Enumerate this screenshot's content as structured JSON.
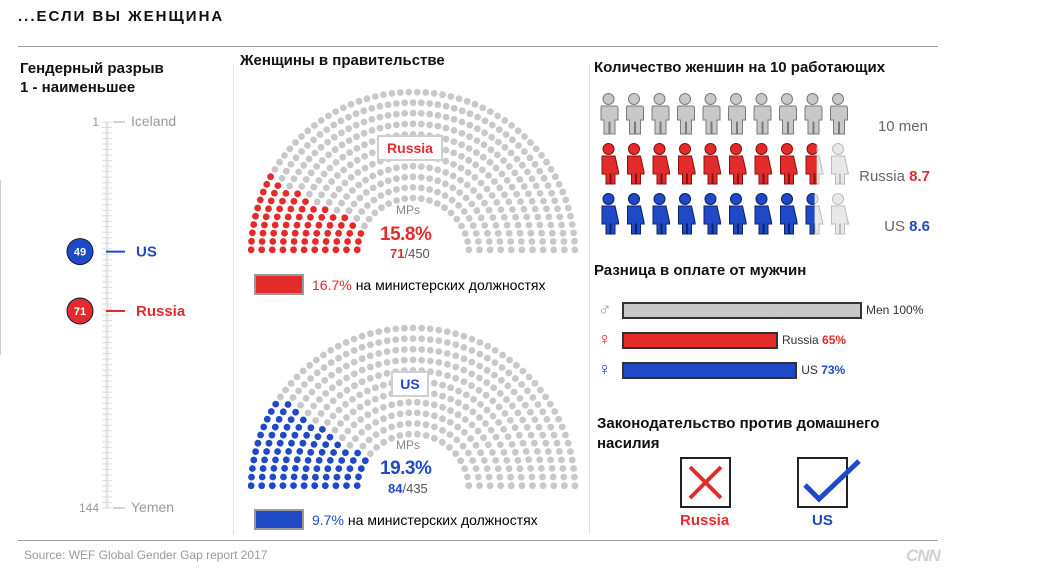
{
  "header": {
    "title": "...ЕСЛИ ВЫ ЖЕНЩИНА"
  },
  "source": "Source: WEF Global Gender Gap report 2017",
  "logo_text": "CNN",
  "colors": {
    "russia": "#e42b2b",
    "us": "#1f49c7",
    "gray": "#c8c8c8",
    "dark_gray": "#999999"
  },
  "chart_data": [
    {
      "type": "table",
      "id": "gender-gap-rank",
      "title": "Гендерный разрыв",
      "subtitle": "1 - наименьшее",
      "scale": {
        "top": {
          "rank": 1,
          "label": "Iceland"
        },
        "bottom": {
          "rank": 144,
          "label": "Yemen"
        }
      },
      "rows": [
        {
          "country": "US",
          "rank": 49
        },
        {
          "country": "Russia",
          "rank": 71
        }
      ]
    },
    {
      "type": "pie",
      "id": "women-in-government",
      "title": "Женщины в правительстве",
      "parliaments": [
        {
          "country": "Russia",
          "label_mps": "MPs",
          "percent": "15.8%",
          "women": 71,
          "total": 450,
          "cabinet_percent": "16.7%",
          "cabinet_value": 16.7,
          "cabinet_text": "на министерских должностях"
        },
        {
          "country": "US",
          "label_mps": "MPs",
          "percent": "19.3%",
          "women": 84,
          "total": 435,
          "cabinet_percent": "9.7%",
          "cabinet_value": 9.7,
          "cabinet_text": "на министерских должностях"
        }
      ]
    },
    {
      "type": "table",
      "id": "women-per-10-workers",
      "title": "Количество женшин на 10 работающих",
      "rows": [
        {
          "label": "10 men",
          "country": "",
          "value": 10
        },
        {
          "label": "Russia",
          "country": "Russia",
          "value": 8.7,
          "value_text": "8.7"
        },
        {
          "label": "US",
          "country": "US",
          "value": 8.6,
          "value_text": "8.6"
        }
      ]
    },
    {
      "type": "bar",
      "id": "pay-gap",
      "title": "Разница в оплате от мужчин",
      "categories": [
        "Men",
        "Russia",
        "US"
      ],
      "values": [
        100,
        65,
        73
      ],
      "labels": [
        {
          "name": "Men",
          "value_text": "100%"
        },
        {
          "name": "Russia",
          "value_text": "65%"
        },
        {
          "name": "US",
          "value_text": "73%"
        }
      ],
      "symbols": [
        "♂",
        "♀",
        "♀"
      ],
      "xlim": [
        0,
        100
      ]
    },
    {
      "type": "table",
      "id": "domestic-violence-law",
      "title": "Законодательство против домашнего насилия",
      "rows": [
        {
          "country": "Russia",
          "has_law": false,
          "icon": "cross-icon"
        },
        {
          "country": "US",
          "has_law": true,
          "icon": "check-icon"
        }
      ]
    }
  ]
}
